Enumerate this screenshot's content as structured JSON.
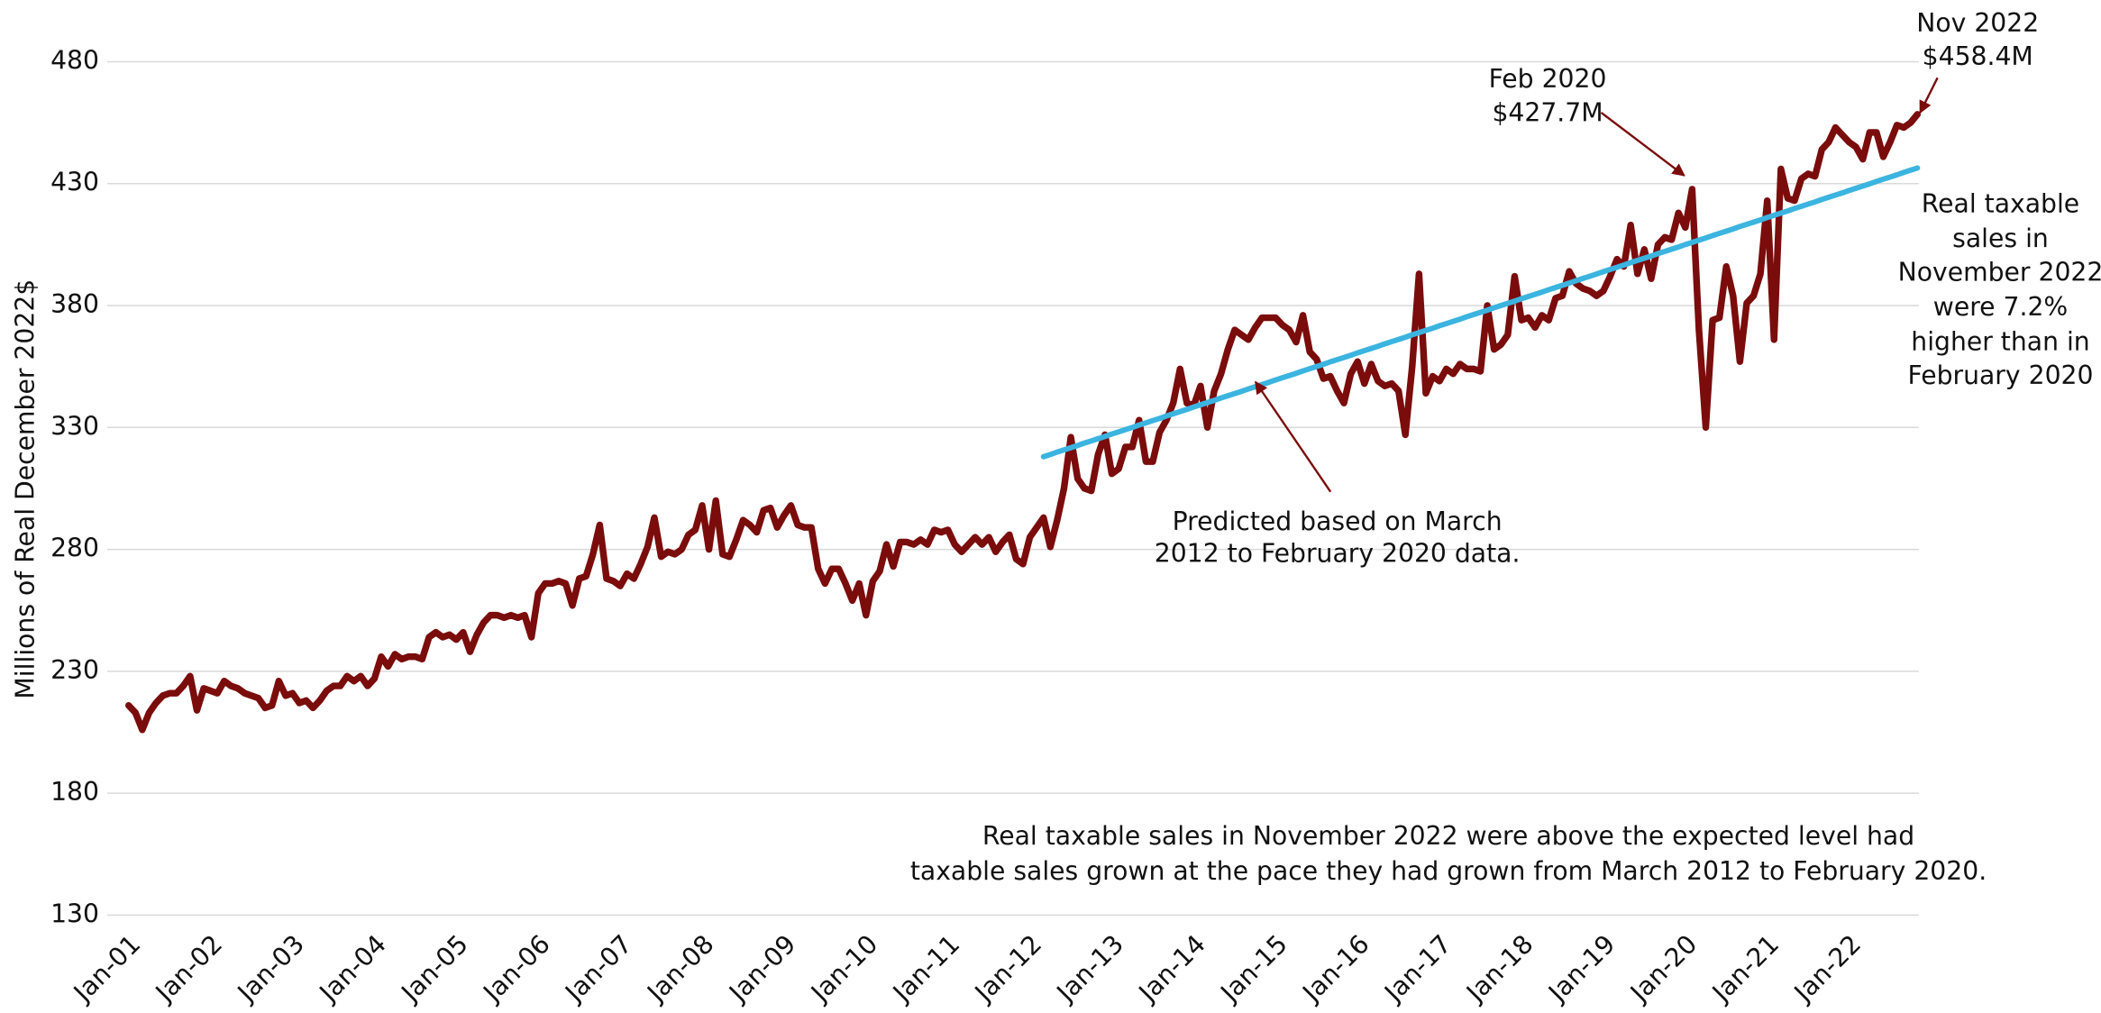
{
  "chart_data": {
    "type": "line",
    "ylabel": "Millions of Real December 2022$",
    "ylim": [
      130,
      480
    ],
    "yticks": [
      130,
      180,
      230,
      280,
      330,
      380,
      430,
      480
    ],
    "grid": true,
    "categories": [
      "Jan-01",
      null,
      null,
      null,
      null,
      null,
      null,
      null,
      null,
      null,
      null,
      null,
      "Jan-02",
      null,
      null,
      null,
      null,
      null,
      null,
      null,
      null,
      null,
      null,
      null,
      "Jan-03",
      null,
      null,
      null,
      null,
      null,
      null,
      null,
      null,
      null,
      null,
      null,
      "Jan-04",
      null,
      null,
      null,
      null,
      null,
      null,
      null,
      null,
      null,
      null,
      null,
      "Jan-05",
      null,
      null,
      null,
      null,
      null,
      null,
      null,
      null,
      null,
      null,
      null,
      "Jan-06",
      null,
      null,
      null,
      null,
      null,
      null,
      null,
      null,
      null,
      null,
      null,
      "Jan-07",
      null,
      null,
      null,
      null,
      null,
      null,
      null,
      null,
      null,
      null,
      null,
      "Jan-08",
      null,
      null,
      null,
      null,
      null,
      null,
      null,
      null,
      null,
      null,
      null,
      "Jan-09",
      null,
      null,
      null,
      null,
      null,
      null,
      null,
      null,
      null,
      null,
      null,
      "Jan-10",
      null,
      null,
      null,
      null,
      null,
      null,
      null,
      null,
      null,
      null,
      null,
      "Jan-11",
      null,
      null,
      null,
      null,
      null,
      null,
      null,
      null,
      null,
      null,
      null,
      "Jan-12",
      null,
      null,
      null,
      null,
      null,
      null,
      null,
      null,
      null,
      null,
      null,
      "Jan-13",
      null,
      null,
      null,
      null,
      null,
      null,
      null,
      null,
      null,
      null,
      null,
      "Jan-14",
      null,
      null,
      null,
      null,
      null,
      null,
      null,
      null,
      null,
      null,
      null,
      "Jan-15",
      null,
      null,
      null,
      null,
      null,
      null,
      null,
      null,
      null,
      null,
      null,
      "Jan-16",
      null,
      null,
      null,
      null,
      null,
      null,
      null,
      null,
      null,
      null,
      null,
      "Jan-17",
      null,
      null,
      null,
      null,
      null,
      null,
      null,
      null,
      null,
      null,
      null,
      "Jan-18",
      null,
      null,
      null,
      null,
      null,
      null,
      null,
      null,
      null,
      null,
      null,
      "Jan-19",
      null,
      null,
      null,
      null,
      null,
      null,
      null,
      null,
      null,
      null,
      null,
      "Jan-20",
      null,
      null,
      null,
      null,
      null,
      null,
      null,
      null,
      null,
      null,
      null,
      "Jan-21",
      null,
      null,
      null,
      null,
      null,
      null,
      null,
      null,
      null,
      null,
      null,
      "Jan-22",
      null,
      null,
      null,
      null,
      null,
      null,
      null,
      null,
      null,
      null
    ],
    "series": [
      {
        "color": "#7b0c0c",
        "values": [
          216,
          213,
          206,
          213,
          217,
          220,
          221,
          221,
          224,
          228,
          214,
          223,
          222,
          221,
          226,
          224,
          223,
          221,
          220,
          219,
          215,
          216,
          226,
          220,
          221,
          217,
          218,
          215,
          218,
          222,
          224,
          224,
          228,
          226,
          228,
          224,
          227,
          236,
          232,
          237,
          235,
          236,
          236,
          235,
          244,
          246,
          244,
          245,
          243,
          246,
          238,
          245,
          250,
          253,
          253,
          252,
          253,
          252,
          253,
          244,
          262,
          266,
          266,
          267,
          266,
          257,
          268,
          269,
          278,
          290,
          268,
          267,
          265,
          270,
          268,
          274,
          281,
          293,
          277,
          279,
          278,
          280,
          286,
          288,
          298,
          280,
          300,
          278,
          277,
          284,
          292,
          290,
          287,
          296,
          297,
          289,
          294,
          298,
          290,
          289,
          289,
          272,
          266,
          272,
          272,
          266,
          259,
          266,
          253,
          267,
          271,
          282,
          273,
          283,
          283,
          282,
          284,
          282,
          288,
          287,
          288,
          282,
          279,
          282,
          285,
          282,
          285,
          279,
          283,
          286,
          276,
          274,
          285,
          289,
          293,
          281,
          292,
          305,
          326,
          309,
          305,
          304,
          319,
          327,
          311,
          313,
          322,
          322,
          333,
          316,
          316,
          328,
          333,
          340,
          354,
          340,
          339,
          347,
          330,
          345,
          352,
          362,
          370,
          368,
          366,
          371,
          375,
          375,
          375,
          372,
          370,
          365,
          376,
          361,
          358,
          350,
          351,
          345,
          340,
          352,
          357,
          348,
          356,
          349,
          347,
          348,
          345,
          327,
          355,
          393,
          344,
          351,
          349,
          354,
          352,
          356,
          354,
          354,
          353,
          380,
          362,
          364,
          368,
          392,
          374,
          375,
          371,
          376,
          374,
          383,
          384,
          394,
          389,
          387,
          386,
          384,
          386,
          392,
          399,
          396,
          413,
          393,
          403,
          391,
          405,
          408,
          407,
          418,
          412,
          427.7,
          370,
          330,
          374,
          375,
          396,
          384,
          357,
          381,
          384,
          393,
          423,
          366,
          436,
          424,
          423,
          432,
          434,
          433,
          444,
          447,
          453,
          450,
          447,
          445,
          440,
          451,
          451,
          441,
          447,
          454,
          453,
          455,
          458.4
        ]
      },
      {
        "color": "#3bb4e0",
        "values": [
          null,
          null,
          null,
          null,
          null,
          null,
          null,
          null,
          null,
          null,
          null,
          null,
          null,
          null,
          null,
          null,
          null,
          null,
          null,
          null,
          null,
          null,
          null,
          null,
          null,
          null,
          null,
          null,
          null,
          null,
          null,
          null,
          null,
          null,
          null,
          null,
          null,
          null,
          null,
          null,
          null,
          null,
          null,
          null,
          null,
          null,
          null,
          null,
          null,
          null,
          null,
          null,
          null,
          null,
          null,
          null,
          null,
          null,
          null,
          null,
          null,
          null,
          null,
          null,
          null,
          null,
          null,
          null,
          null,
          null,
          null,
          null,
          null,
          null,
          null,
          null,
          null,
          null,
          null,
          null,
          null,
          null,
          null,
          null,
          null,
          null,
          null,
          null,
          null,
          null,
          null,
          null,
          null,
          null,
          null,
          null,
          null,
          null,
          null,
          null,
          null,
          null,
          null,
          null,
          null,
          null,
          null,
          null,
          null,
          null,
          null,
          null,
          null,
          null,
          null,
          null,
          null,
          null,
          null,
          null,
          null,
          null,
          null,
          null,
          null,
          null,
          null,
          null,
          null,
          null,
          null,
          null,
          null,
          null,
          318,
          318.9,
          319.9,
          320.8,
          321.7,
          322.6,
          323.6,
          324.5,
          325.4,
          326.3,
          327.3,
          328.2,
          329.1,
          330,
          331,
          331.9,
          332.8,
          333.7,
          334.7,
          335.6,
          336.5,
          337.4,
          338.4,
          339.3,
          340.2,
          341.1,
          342.1,
          343,
          343.9,
          344.8,
          345.8,
          346.7,
          347.6,
          348.5,
          349.5,
          350.4,
          351.3,
          352.2,
          353.2,
          354.1,
          355,
          355.9,
          356.9,
          357.8,
          358.7,
          359.6,
          360.6,
          361.5,
          362.4,
          363.3,
          364.3,
          365.2,
          366.1,
          367,
          368,
          368.9,
          369.8,
          370.7,
          371.7,
          372.6,
          373.5,
          374.4,
          375.4,
          376.3,
          377.2,
          378.1,
          379.1,
          380,
          380.9,
          381.8,
          382.8,
          383.7,
          384.6,
          385.5,
          386.5,
          387.4,
          388.3,
          389.2,
          390.2,
          391.1,
          392,
          392.9,
          393.9,
          394.8,
          395.7,
          396.6,
          397.6,
          398.5,
          399.4,
          400.3,
          401.3,
          402.2,
          403.1,
          404,
          405,
          405.9,
          406.8,
          407.7,
          408.7,
          409.6,
          410.5,
          411.4,
          412.4,
          413.3,
          414.2,
          415.1,
          416.1,
          417,
          417.9,
          418.8,
          419.8,
          420.7,
          421.6,
          422.5,
          423.5,
          424.4,
          425.3,
          426.2,
          427.2,
          428.1,
          429,
          429.9,
          430.9,
          431.8,
          432.7,
          433.6,
          434.6,
          435.5,
          436.4
        ]
      }
    ],
    "annotations": [
      [
        "Feb 2020",
        "$427.7M"
      ],
      [
        "Nov 2022",
        "$458.4M"
      ],
      [
        "Predicted based on March",
        "2012 to February 2020 data."
      ],
      [
        "Real taxable",
        "sales in",
        "November 2022",
        "were 7.2%",
        "higher than in",
        "February 2020"
      ],
      [
        "Real taxable sales in November 2022 were above the expected level had",
        "taxable sales grown at the pace they had grown from March 2012 to February 2020."
      ]
    ]
  }
}
